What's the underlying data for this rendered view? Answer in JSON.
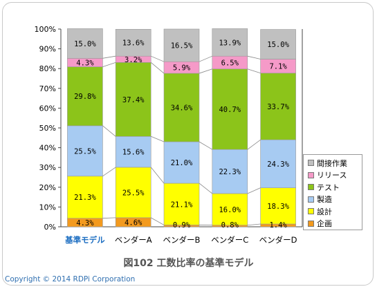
{
  "chart_data": {
    "type": "bar",
    "stacked": true,
    "normalized": true,
    "categories": [
      "基準モデル",
      "ベンダーA",
      "ベンダーB",
      "ベンダーC",
      "ベンダーD"
    ],
    "highlight_category": "基準モデル",
    "highlight_color": "#1e6fc2",
    "y_ticks": [
      "0%",
      "10%",
      "20%",
      "30%",
      "40%",
      "50%",
      "60%",
      "70%",
      "80%",
      "90%",
      "100%"
    ],
    "ylim": [
      0,
      100
    ],
    "grid": false,
    "legend_position": "right",
    "series": [
      {
        "name": "企画",
        "color": "#f39a1e",
        "values": [
          4.3,
          4.6,
          0.9,
          0.8,
          1.4
        ],
        "labels": [
          "4.3%",
          "4.6%",
          "0.9%",
          "0.8%",
          "1.4%"
        ]
      },
      {
        "name": "設計",
        "color": "#ffff00",
        "values": [
          21.3,
          25.5,
          21.1,
          16.0,
          18.3
        ],
        "labels": [
          "21.3%",
          "25.5%",
          "21.1%",
          "16.0%",
          "18.3%"
        ]
      },
      {
        "name": "製造",
        "color": "#a7cbf2",
        "values": [
          25.5,
          15.6,
          21.0,
          22.3,
          24.3
        ],
        "labels": [
          "25.5%",
          "15.6%",
          "21.0%",
          "22.3%",
          "24.3%"
        ]
      },
      {
        "name": "テスト",
        "color": "#8cc41a",
        "values": [
          29.8,
          37.4,
          34.6,
          40.7,
          33.7
        ],
        "labels": [
          "29.8%",
          "37.4%",
          "34.6%",
          "40.7%",
          "33.7%"
        ]
      },
      {
        "name": "リリース",
        "color": "#f59ac8",
        "values": [
          4.3,
          3.2,
          5.9,
          6.5,
          7.1
        ],
        "labels": [
          "4.3%",
          "3.2%",
          "5.9%",
          "6.5%",
          "7.1%"
        ]
      },
      {
        "name": "間接作業",
        "color": "#c0c0c0",
        "values": [
          15.0,
          13.6,
          16.5,
          13.9,
          15.0
        ],
        "labels": [
          "15.0%",
          "13.6%",
          "16.5%",
          "13.9%",
          "15.0%"
        ]
      }
    ]
  },
  "caption": "図102 工数比率の基準モデル",
  "copyright": "Copyright © 2014  RDPi Corporation"
}
